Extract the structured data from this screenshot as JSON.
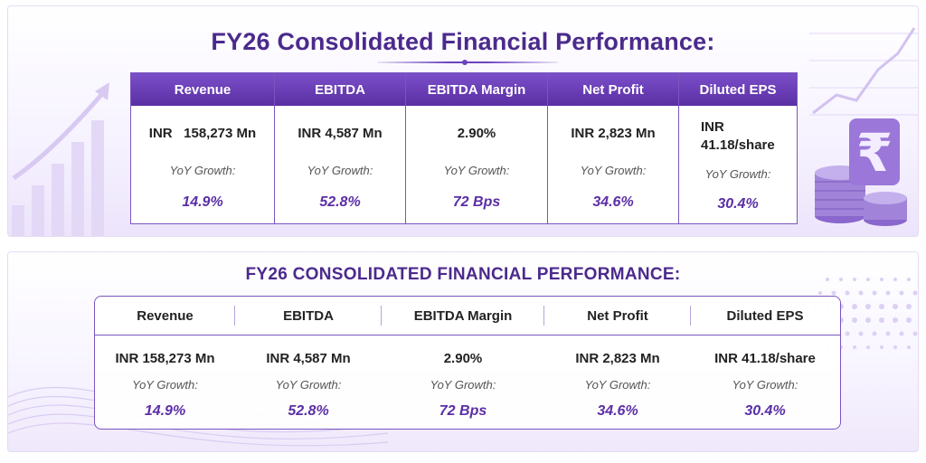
{
  "panel1": {
    "title": "FY26 Consolidated Financial Performance:",
    "columns": [
      {
        "header": "Revenue",
        "value": "INR   158,273 Mn",
        "yoy_label": "YoY Growth:",
        "growth": "14.9%"
      },
      {
        "header": "EBITDA",
        "value": "INR 4,587 Mn",
        "yoy_label": "YoY Growth:",
        "growth": "52.8%"
      },
      {
        "header": "EBITDA Margin",
        "value": "2.90%",
        "yoy_label": "YoY Growth:",
        "growth": "72 Bps"
      },
      {
        "header": "Net Profit",
        "value": "INR 2,823 Mn",
        "yoy_label": "YoY Growth:",
        "growth": "34.6%"
      },
      {
        "header": "Diluted EPS",
        "value_line1": "INR",
        "value_line2": "41.18/share",
        "yoy_label": "YoY Growth:",
        "growth": "30.4%"
      }
    ]
  },
  "panel2": {
    "title": "FY26 CONSOLIDATED FINANCIAL PERFORMANCE:",
    "columns": [
      {
        "header": "Revenue",
        "value": "INR 158,273 Mn",
        "yoy_label": "YoY Growth:",
        "growth": "14.9%"
      },
      {
        "header": "EBITDA",
        "value": "INR 4,587 Mn",
        "yoy_label": "YoY Growth:",
        "growth": "52.8%"
      },
      {
        "header": "EBITDA Margin",
        "value": "2.90%",
        "yoy_label": "YoY Growth:",
        "growth": "72 Bps"
      },
      {
        "header": "Net Profit",
        "value": "INR 2,823 Mn",
        "yoy_label": "YoY Growth:",
        "growth": "34.6%"
      },
      {
        "header": "Diluted EPS",
        "value": "INR 41.18/share",
        "yoy_label": "YoY Growth:",
        "growth": "30.4%"
      }
    ]
  },
  "icons": {
    "growth_chart": "bar-chart-arrow-icon",
    "rupee_coins": "rupee-coins-icon"
  },
  "colors": {
    "accent": "#5b2ea6",
    "header_gradient_top": "#7b4fc9",
    "header_gradient_bottom": "#5a2fa3",
    "title": "#4b2a8c"
  }
}
